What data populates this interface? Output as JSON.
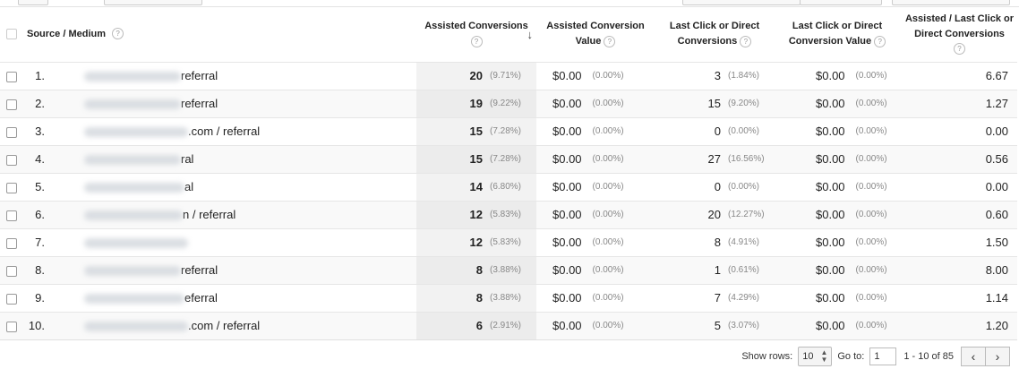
{
  "header": {
    "source_medium": "Source / Medium",
    "help": "?",
    "assisted_conversions": "Assisted Conversions",
    "assisted_conversion_value": "Assisted Conversion Value",
    "last_click_conversions": "Last Click or Direct Conversions",
    "last_click_value": "Last Click or Direct Conversion Value",
    "ratio": "Assisted / Last Click or Direct Conversions",
    "sort_arrow": "↓"
  },
  "rows": [
    {
      "index": "1.",
      "source": "referral",
      "assisted": "20",
      "assisted_pct": "(9.71%)",
      "acv": "$0.00",
      "acv_pct": "(0.00%)",
      "last": "3",
      "last_pct": "(1.84%)",
      "lcv": "$0.00",
      "lcv_pct": "(0.00%)",
      "ratio": "6.67"
    },
    {
      "index": "2.",
      "source": "referral",
      "assisted": "19",
      "assisted_pct": "(9.22%)",
      "acv": "$0.00",
      "acv_pct": "(0.00%)",
      "last": "15",
      "last_pct": "(9.20%)",
      "lcv": "$0.00",
      "lcv_pct": "(0.00%)",
      "ratio": "1.27"
    },
    {
      "index": "3.",
      "source": ".com / referral",
      "assisted": "15",
      "assisted_pct": "(7.28%)",
      "acv": "$0.00",
      "acv_pct": "(0.00%)",
      "last": "0",
      "last_pct": "(0.00%)",
      "lcv": "$0.00",
      "lcv_pct": "(0.00%)",
      "ratio": "0.00"
    },
    {
      "index": "4.",
      "source": "ral",
      "assisted": "15",
      "assisted_pct": "(7.28%)",
      "acv": "$0.00",
      "acv_pct": "(0.00%)",
      "last": "27",
      "last_pct": "(16.56%)",
      "lcv": "$0.00",
      "lcv_pct": "(0.00%)",
      "ratio": "0.56"
    },
    {
      "index": "5.",
      "source": "al",
      "assisted": "14",
      "assisted_pct": "(6.80%)",
      "acv": "$0.00",
      "acv_pct": "(0.00%)",
      "last": "0",
      "last_pct": "(0.00%)",
      "lcv": "$0.00",
      "lcv_pct": "(0.00%)",
      "ratio": "0.00"
    },
    {
      "index": "6.",
      "source": "n / referral",
      "assisted": "12",
      "assisted_pct": "(5.83%)",
      "acv": "$0.00",
      "acv_pct": "(0.00%)",
      "last": "20",
      "last_pct": "(12.27%)",
      "lcv": "$0.00",
      "lcv_pct": "(0.00%)",
      "ratio": "0.60"
    },
    {
      "index": "7.",
      "source": "",
      "assisted": "12",
      "assisted_pct": "(5.83%)",
      "acv": "$0.00",
      "acv_pct": "(0.00%)",
      "last": "8",
      "last_pct": "(4.91%)",
      "lcv": "$0.00",
      "lcv_pct": "(0.00%)",
      "ratio": "1.50"
    },
    {
      "index": "8.",
      "source": "referral",
      "assisted": "8",
      "assisted_pct": "(3.88%)",
      "acv": "$0.00",
      "acv_pct": "(0.00%)",
      "last": "1",
      "last_pct": "(0.61%)",
      "lcv": "$0.00",
      "lcv_pct": "(0.00%)",
      "ratio": "8.00"
    },
    {
      "index": "9.",
      "source": "eferral",
      "assisted": "8",
      "assisted_pct": "(3.88%)",
      "acv": "$0.00",
      "acv_pct": "(0.00%)",
      "last": "7",
      "last_pct": "(4.29%)",
      "lcv": "$0.00",
      "lcv_pct": "(0.00%)",
      "ratio": "1.14"
    },
    {
      "index": "10.",
      "source": ".com / referral",
      "assisted": "6",
      "assisted_pct": "(2.91%)",
      "acv": "$0.00",
      "acv_pct": "(0.00%)",
      "last": "5",
      "last_pct": "(3.07%)",
      "lcv": "$0.00",
      "lcv_pct": "(0.00%)",
      "ratio": "1.20"
    }
  ],
  "footer": {
    "show_rows_label": "Show rows:",
    "show_rows_value": "10",
    "goto_label": "Go to:",
    "goto_value": "1",
    "range": "1 - 10 of 85",
    "prev": "‹",
    "next": "›"
  }
}
